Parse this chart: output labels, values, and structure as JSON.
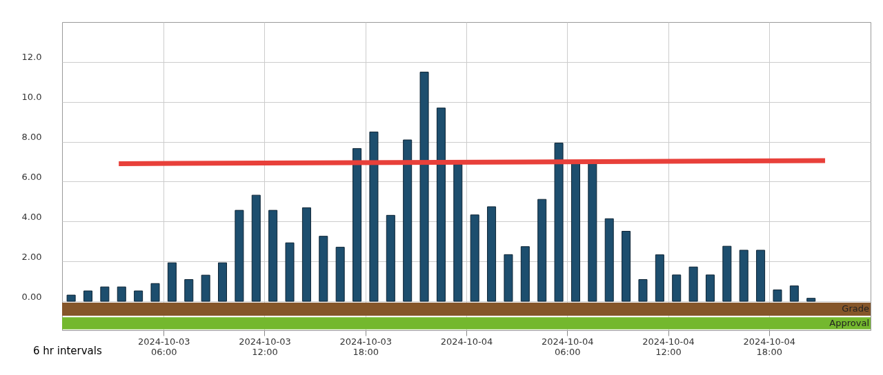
{
  "chart_data": {
    "type": "bar",
    "x": [
      "2024-10-03T00:30",
      "2024-10-03T01:30",
      "2024-10-03T02:30",
      "2024-10-03T03:30",
      "2024-10-03T04:30",
      "2024-10-03T05:30",
      "2024-10-03T06:30",
      "2024-10-03T07:30",
      "2024-10-03T08:30",
      "2024-10-03T09:30",
      "2024-10-03T10:30",
      "2024-10-03T11:30",
      "2024-10-03T12:30",
      "2024-10-03T13:30",
      "2024-10-03T14:30",
      "2024-10-03T15:30",
      "2024-10-03T16:30",
      "2024-10-03T17:30",
      "2024-10-03T18:30",
      "2024-10-03T19:30",
      "2024-10-03T20:30",
      "2024-10-03T21:30",
      "2024-10-03T22:30",
      "2024-10-03T23:30",
      "2024-10-04T00:30",
      "2024-10-04T01:30",
      "2024-10-04T02:30",
      "2024-10-04T03:30",
      "2024-10-04T04:30",
      "2024-10-04T05:30",
      "2024-10-04T06:30",
      "2024-10-04T07:30",
      "2024-10-04T08:30",
      "2024-10-04T09:30",
      "2024-10-04T10:30",
      "2024-10-04T11:30",
      "2024-10-04T12:30",
      "2024-10-04T13:30",
      "2024-10-04T14:30",
      "2024-10-04T15:30",
      "2024-10-04T16:30",
      "2024-10-04T17:30",
      "2024-10-04T18:30",
      "2024-10-04T19:30",
      "2024-10-04T20:30"
    ],
    "series": [
      {
        "color": "#1d4e6e",
        "values": [
          0.31,
          0.52,
          0.72,
          0.72,
          0.52,
          0.89,
          1.93,
          1.09,
          1.31,
          1.93,
          4.56,
          5.32,
          4.56,
          2.93,
          4.69,
          3.26,
          2.71,
          7.66,
          8.49,
          4.31,
          8.09,
          11.49,
          9.69,
          6.86,
          4.33,
          4.74,
          2.34,
          2.74,
          5.11,
          7.93,
          6.9,
          6.9,
          4.14,
          3.51,
          1.09,
          2.33,
          1.32,
          1.72,
          1.32,
          2.76,
          2.56,
          2.56,
          0.57,
          0.77,
          0.15
        ]
      },
      {
        "type": "line",
        "color": "#e8403a",
        "x": [
          "2024-10-03T03:20",
          "2024-10-04T21:20"
        ],
        "values": [
          6.9,
          7.05
        ]
      }
    ],
    "xlim": [
      "2024-10-03T00:10",
      "2024-10-04T23:50"
    ],
    "xticks": [
      {
        "value": "2024-10-03T06:00",
        "label": "2024-10-03 06:00"
      },
      {
        "value": "2024-10-03T12:00",
        "label": "2024-10-03 12:00"
      },
      {
        "value": "2024-10-03T18:00",
        "label": "2024-10-03 18:00"
      },
      {
        "value": "2024-10-04T00:00",
        "label": "2024-10-04"
      },
      {
        "value": "2024-10-04T06:00",
        "label": "2024-10-04 06:00"
      },
      {
        "value": "2024-10-04T12:00",
        "label": "2024-10-04 12:00"
      },
      {
        "value": "2024-10-04T18:00",
        "label": "2024-10-04 18:00"
      }
    ],
    "ylim": [
      -1.45,
      14
    ],
    "yticks": [
      {
        "value": 0,
        "label": "0.00"
      },
      {
        "value": 2,
        "label": "2.00"
      },
      {
        "value": 4,
        "label": "4.00"
      },
      {
        "value": 6,
        "label": "6.00"
      },
      {
        "value": 8,
        "label": "8.00"
      },
      {
        "value": 10,
        "label": "10.0"
      },
      {
        "value": 12,
        "label": "12.0"
      }
    ],
    "bands": [
      {
        "axis": "y",
        "from": -0.07,
        "to": -0.72,
        "label": "Grade",
        "color": "#85562a"
      },
      {
        "axis": "y",
        "from": -0.8,
        "to": -1.41,
        "label": "Approval",
        "color": "#74b82e"
      }
    ],
    "grid": true,
    "annotations": [
      "6 hr intervals"
    ]
  }
}
